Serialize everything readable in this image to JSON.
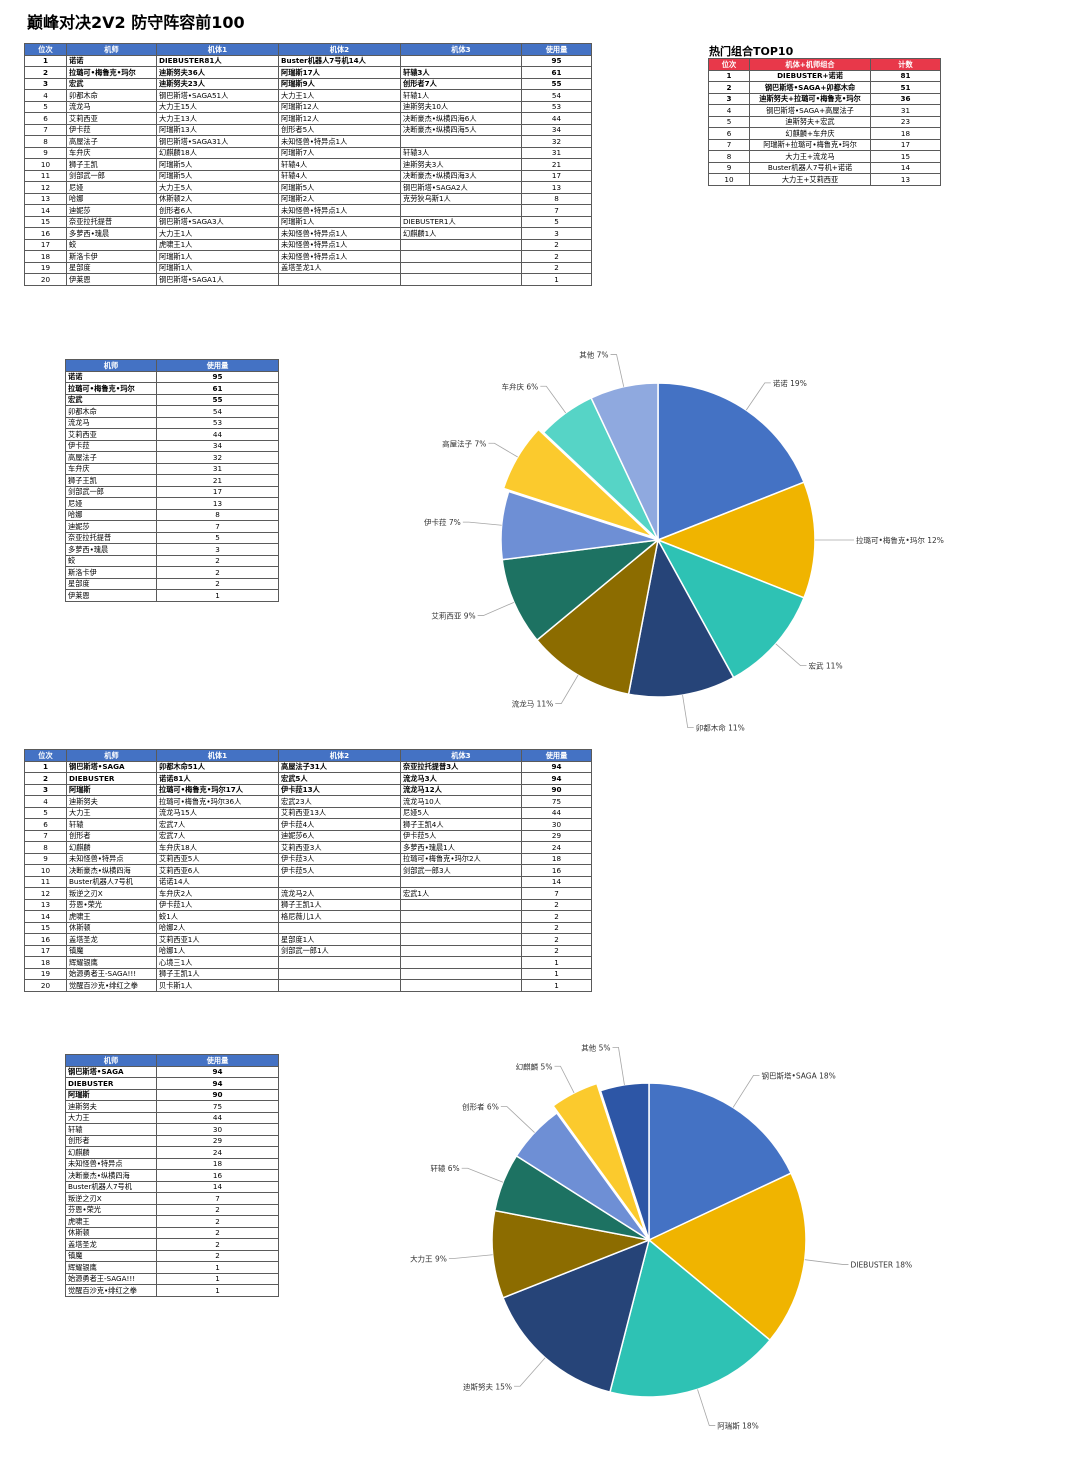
{
  "title": "巅峰对决2V2 防守阵容前100",
  "table_headers": {
    "rank": "位次",
    "pilot": "机师",
    "m1": "机体1",
    "m2": "机体2",
    "m3": "机体3",
    "usage": "使用量"
  },
  "pilot_table_headers": {
    "pilot": "机师",
    "usage": "使用量"
  },
  "top10": {
    "title": "热门组合TOP10",
    "headers": {
      "rank": "位次",
      "combo": "机体+机师组合",
      "count": "计数"
    },
    "rows": [
      {
        "rank": "1",
        "combo": "DIEBUSTER+诺诺",
        "count": "81",
        "bold": true
      },
      {
        "rank": "2",
        "combo": "钢巴斯塔•SAGA+卯都木命",
        "count": "51",
        "bold": true
      },
      {
        "rank": "3",
        "combo": "迪斯努夫+拉璐可•梅鲁克•玛尔",
        "count": "36",
        "bold": true
      },
      {
        "rank": "4",
        "combo": "钢巴斯塔•SAGA+高屋法子",
        "count": "31",
        "bold": false
      },
      {
        "rank": "5",
        "combo": "迪斯努夫+宏武",
        "count": "23",
        "bold": false
      },
      {
        "rank": "6",
        "combo": "幻麒麟+车弁庆",
        "count": "18",
        "bold": false
      },
      {
        "rank": "7",
        "combo": "阿瑞斯+拉璐可•梅鲁克•玛尔",
        "count": "17",
        "bold": false
      },
      {
        "rank": "8",
        "combo": "大力王+流龙马",
        "count": "15",
        "bold": false
      },
      {
        "rank": "9",
        "combo": "Buster机器人7号机+诺诺",
        "count": "14",
        "bold": false
      },
      {
        "rank": "10",
        "combo": "大力王+艾莉西亚",
        "count": "13",
        "bold": false
      }
    ]
  },
  "table1": [
    {
      "rank": "1",
      "pilot": "诺诺",
      "m1": "DIEBUSTER81人",
      "m2": "Buster机器人7号机14人",
      "m3": "",
      "usage": "95",
      "bold": true
    },
    {
      "rank": "2",
      "pilot": "拉璐可•梅鲁克•玛尔",
      "m1": "迪斯努夫36人",
      "m2": "阿瑞斯17人",
      "m3": "轩辕3人",
      "usage": "61",
      "bold": true
    },
    {
      "rank": "3",
      "pilot": "宏武",
      "m1": "迪斯努夫23人",
      "m2": "阿瑞斯9人",
      "m3": "创形者7人",
      "usage": "55",
      "bold": true
    },
    {
      "rank": "4",
      "pilot": "卯都木命",
      "m1": "钢巴斯塔•SAGA51人",
      "m2": "大力王1人",
      "m3": "轩辕1人",
      "usage": "54",
      "bold": false
    },
    {
      "rank": "5",
      "pilot": "流龙马",
      "m1": "大力王15人",
      "m2": "阿瑞斯12人",
      "m3": "迪斯努夫10人",
      "usage": "53",
      "bold": false
    },
    {
      "rank": "6",
      "pilot": "艾莉西亚",
      "m1": "大力王13人",
      "m2": "阿瑞斯12人",
      "m3": "决断豪杰•纵横四海6人",
      "usage": "44",
      "bold": false
    },
    {
      "rank": "7",
      "pilot": "伊卡菈",
      "m1": "阿瑞斯13人",
      "m2": "创形者5人",
      "m3": "决断豪杰•纵横四海5人",
      "usage": "34",
      "bold": false
    },
    {
      "rank": "8",
      "pilot": "高屋法子",
      "m1": "钢巴斯塔•SAGA31人",
      "m2": "未知怪兽•特异点1人",
      "m3": "",
      "usage": "32",
      "bold": false
    },
    {
      "rank": "9",
      "pilot": "车弁庆",
      "m1": "幻麒麟18人",
      "m2": "阿瑞斯7人",
      "m3": "轩辕3人",
      "usage": "31",
      "bold": false
    },
    {
      "rank": "10",
      "pilot": "狮子王凯",
      "m1": "阿瑞斯5人",
      "m2": "轩辕4人",
      "m3": "迪斯努夫3人",
      "usage": "21",
      "bold": false
    },
    {
      "rank": "11",
      "pilot": "剑部武一郎",
      "m1": "阿瑞斯5人",
      "m2": "轩辕4人",
      "m3": "决断豪杰•纵横四海3人",
      "usage": "17",
      "bold": false
    },
    {
      "rank": "12",
      "pilot": "尼娅",
      "m1": "大力王5人",
      "m2": "阿瑞斯5人",
      "m3": "钢巴斯塔•SAGA2人",
      "usage": "13",
      "bold": false
    },
    {
      "rank": "13",
      "pilot": "哈娜",
      "m1": "休斯顿2人",
      "m2": "阿瑞斯2人",
      "m3": "克劳狄乌斯1人",
      "usage": "8",
      "bold": false
    },
    {
      "rank": "14",
      "pilot": "迪妮莎",
      "m1": "创形者6人",
      "m2": "未知怪兽•特异点1人",
      "m3": "",
      "usage": "7",
      "bold": false
    },
    {
      "rank": "15",
      "pilot": "奈亚拉托提普",
      "m1": "钢巴斯塔•SAGA3人",
      "m2": "阿瑞斯1人",
      "m3": "DIEBUSTER1人",
      "usage": "5",
      "bold": false
    },
    {
      "rank": "16",
      "pilot": "多萝西•瑰晨",
      "m1": "大力王1人",
      "m2": "未知怪兽•特异点1人",
      "m3": "幻麒麟1人",
      "usage": "3",
      "bold": false
    },
    {
      "rank": "17",
      "pilot": "蛟",
      "m1": "虎啸王1人",
      "m2": "未知怪兽•特异点1人",
      "m3": "",
      "usage": "2",
      "bold": false
    },
    {
      "rank": "18",
      "pilot": "斯洛卡伊",
      "m1": "阿瑞斯1人",
      "m2": "未知怪兽•特异点1人",
      "m3": "",
      "usage": "2",
      "bold": false
    },
    {
      "rank": "19",
      "pilot": "星部度",
      "m1": "阿瑞斯1人",
      "m2": "盖塔圣龙1人",
      "m3": "",
      "usage": "2",
      "bold": false
    },
    {
      "rank": "20",
      "pilot": "伊莱恩",
      "m1": "钢巴斯塔•SAGA1人",
      "m2": "",
      "m3": "",
      "usage": "1",
      "bold": false
    }
  ],
  "pilot_table1": [
    {
      "name": "诺诺",
      "usage": "95",
      "bold": true
    },
    {
      "name": "拉璐可•梅鲁克•玛尔",
      "usage": "61",
      "bold": true
    },
    {
      "name": "宏武",
      "usage": "55",
      "bold": true
    },
    {
      "name": "卯都木命",
      "usage": "54",
      "bold": false
    },
    {
      "name": "流龙马",
      "usage": "53",
      "bold": false
    },
    {
      "name": "艾莉西亚",
      "usage": "44",
      "bold": false
    },
    {
      "name": "伊卡菈",
      "usage": "34",
      "bold": false
    },
    {
      "name": "高屋法子",
      "usage": "32",
      "bold": false
    },
    {
      "name": "车弁庆",
      "usage": "31",
      "bold": false
    },
    {
      "name": "狮子王凯",
      "usage": "21",
      "bold": false
    },
    {
      "name": "剑部武一郎",
      "usage": "17",
      "bold": false
    },
    {
      "name": "尼娅",
      "usage": "13",
      "bold": false
    },
    {
      "name": "哈娜",
      "usage": "8",
      "bold": false
    },
    {
      "name": "迪妮莎",
      "usage": "7",
      "bold": false
    },
    {
      "name": "奈亚拉托提普",
      "usage": "5",
      "bold": false
    },
    {
      "name": "多萝西•瑰晨",
      "usage": "3",
      "bold": false
    },
    {
      "name": "蛟",
      "usage": "2",
      "bold": false
    },
    {
      "name": "斯洛卡伊",
      "usage": "2",
      "bold": false
    },
    {
      "name": "星部度",
      "usage": "2",
      "bold": false
    },
    {
      "name": "伊莱恩",
      "usage": "1",
      "bold": false
    }
  ],
  "table2": [
    {
      "rank": "1",
      "pilot": "钢巴斯塔•SAGA",
      "m1": "卯都木命51人",
      "m2": "高屋法子31人",
      "m3": "奈亚拉托提普3人",
      "usage": "94",
      "bold": true
    },
    {
      "rank": "2",
      "pilot": "DIEBUSTER",
      "m1": "诺诺81人",
      "m2": "宏武5人",
      "m3": "流龙马3人",
      "usage": "94",
      "bold": true
    },
    {
      "rank": "3",
      "pilot": "阿瑞斯",
      "m1": "拉璐可•梅鲁克•玛尔17人",
      "m2": "伊卡菈13人",
      "m3": "流龙马12人",
      "usage": "90",
      "bold": true
    },
    {
      "rank": "4",
      "pilot": "迪斯努夫",
      "m1": "拉璐可•梅鲁克•玛尔36人",
      "m2": "宏武23人",
      "m3": "流龙马10人",
      "usage": "75",
      "bold": false
    },
    {
      "rank": "5",
      "pilot": "大力王",
      "m1": "流龙马15人",
      "m2": "艾莉西亚13人",
      "m3": "尼娅5人",
      "usage": "44",
      "bold": false
    },
    {
      "rank": "6",
      "pilot": "轩辕",
      "m1": "宏武7人",
      "m2": "伊卡菈4人",
      "m3": "狮子王凯4人",
      "usage": "30",
      "bold": false
    },
    {
      "rank": "7",
      "pilot": "创形者",
      "m1": "宏武7人",
      "m2": "迪妮莎6人",
      "m3": "伊卡菈5人",
      "usage": "29",
      "bold": false
    },
    {
      "rank": "8",
      "pilot": "幻麒麟",
      "m1": "车弁庆18人",
      "m2": "艾莉西亚3人",
      "m3": "多萝西•瑰晨1人",
      "usage": "24",
      "bold": false
    },
    {
      "rank": "9",
      "pilot": "未知怪兽•特异点",
      "m1": "艾莉西亚5人",
      "m2": "伊卡菈3人",
      "m3": "拉璐可•梅鲁克•玛尔2人",
      "usage": "18",
      "bold": false
    },
    {
      "rank": "10",
      "pilot": "决断豪杰•纵横四海",
      "m1": "艾莉西亚6人",
      "m2": "伊卡菈5人",
      "m3": "剑部武一郎3人",
      "usage": "16",
      "bold": false
    },
    {
      "rank": "11",
      "pilot": "Buster机器人7号机",
      "m1": "诺诺14人",
      "m2": "",
      "m3": "",
      "usage": "14",
      "bold": false
    },
    {
      "rank": "12",
      "pilot": "叛逆之刃X",
      "m1": "车弁庆2人",
      "m2": "流龙马2人",
      "m3": "宏武1人",
      "usage": "7",
      "bold": false
    },
    {
      "rank": "13",
      "pilot": "芬恩•荣光",
      "m1": "伊卡菈1人",
      "m2": "狮子王凯1人",
      "m3": "",
      "usage": "2",
      "bold": false
    },
    {
      "rank": "14",
      "pilot": "虎啸王",
      "m1": "蛟1人",
      "m2": "格尼薇儿1人",
      "m3": "",
      "usage": "2",
      "bold": false
    },
    {
      "rank": "15",
      "pilot": "休斯顿",
      "m1": "哈娜2人",
      "m2": "",
      "m3": "",
      "usage": "2",
      "bold": false
    },
    {
      "rank": "16",
      "pilot": "盖塔圣龙",
      "m1": "艾莉西亚1人",
      "m2": "星部度1人",
      "m3": "",
      "usage": "2",
      "bold": false
    },
    {
      "rank": "17",
      "pilot": "镇魔",
      "m1": "哈娜1人",
      "m2": "剑部武一郎1人",
      "m3": "",
      "usage": "2",
      "bold": false
    },
    {
      "rank": "18",
      "pilot": "辉耀银鹰",
      "m1": "心境三1人",
      "m2": "",
      "m3": "",
      "usage": "1",
      "bold": false
    },
    {
      "rank": "19",
      "pilot": "始源勇者王-SAGA!!!",
      "m1": "狮子王凯1人",
      "m2": "",
      "m3": "",
      "usage": "1",
      "bold": false
    },
    {
      "rank": "20",
      "pilot": "觉醒百沙克•绯红之拳",
      "m1": "贝卡斯1人",
      "m2": "",
      "m3": "",
      "usage": "1",
      "bold": false
    }
  ],
  "pilot_table2": [
    {
      "name": "钢巴斯塔•SAGA",
      "usage": "94",
      "bold": true
    },
    {
      "name": "DIEBUSTER",
      "usage": "94",
      "bold": true
    },
    {
      "name": "阿瑞斯",
      "usage": "90",
      "bold": true
    },
    {
      "name": "迪斯努夫",
      "usage": "75",
      "bold": false
    },
    {
      "name": "大力王",
      "usage": "44",
      "bold": false
    },
    {
      "name": "轩辕",
      "usage": "30",
      "bold": false
    },
    {
      "name": "创形者",
      "usage": "29",
      "bold": false
    },
    {
      "name": "幻麒麟",
      "usage": "24",
      "bold": false
    },
    {
      "name": "未知怪兽•特异点",
      "usage": "18",
      "bold": false
    },
    {
      "name": "决断豪杰•纵横四海",
      "usage": "16",
      "bold": false
    },
    {
      "name": "Buster机器人7号机",
      "usage": "14",
      "bold": false
    },
    {
      "name": "叛逆之刃X",
      "usage": "7",
      "bold": false
    },
    {
      "name": "芬恩•荣光",
      "usage": "2",
      "bold": false
    },
    {
      "name": "虎啸王",
      "usage": "2",
      "bold": false
    },
    {
      "name": "休斯顿",
      "usage": "2",
      "bold": false
    },
    {
      "name": "盖塔圣龙",
      "usage": "2",
      "bold": false
    },
    {
      "name": "镇魔",
      "usage": "2",
      "bold": false
    },
    {
      "name": "辉耀银鹰",
      "usage": "1",
      "bold": false
    },
    {
      "name": "始源勇者王-SAGA!!!",
      "usage": "1",
      "bold": false
    },
    {
      "name": "觉醒百沙克•绯红之拳",
      "usage": "1",
      "bold": false
    }
  ],
  "chart_data": [
    {
      "type": "pie",
      "title": "",
      "slices": [
        {
          "label": "诺诺",
          "pct": 19,
          "color": "#4472c4"
        },
        {
          "label": "拉璐可•梅鲁克•玛尔",
          "pct": 12,
          "color": "#f0b400"
        },
        {
          "label": "宏武",
          "pct": 11,
          "color": "#2ec2b4"
        },
        {
          "label": "卯都木命",
          "pct": 11,
          "color": "#264478"
        },
        {
          "label": "流龙马",
          "pct": 11,
          "color": "#8c6c00"
        },
        {
          "label": "艾莉西亚",
          "pct": 9,
          "color": "#1d7262"
        },
        {
          "label": "伊卡菈",
          "pct": 7,
          "color": "#6e8fd5"
        },
        {
          "label": "高屋法子",
          "pct": 7,
          "color": "#fbca2d"
        },
        {
          "label": "车弁庆",
          "pct": 6,
          "color": "#56d4c6"
        },
        {
          "label": "其他",
          "pct": 7,
          "color": "#8fa9df"
        }
      ]
    },
    {
      "type": "pie",
      "title": "",
      "slices": [
        {
          "label": "钢巴斯塔•SAGA",
          "pct": 18,
          "color": "#4472c4"
        },
        {
          "label": "DIEBUSTER",
          "pct": 18,
          "color": "#f0b400"
        },
        {
          "label": "阿瑞斯",
          "pct": 18,
          "color": "#2ec2b4"
        },
        {
          "label": "迪斯努夫",
          "pct": 15,
          "color": "#264478"
        },
        {
          "label": "大力王",
          "pct": 9,
          "color": "#8c6c00"
        },
        {
          "label": "轩辕",
          "pct": 6,
          "color": "#1d7262"
        },
        {
          "label": "创形者",
          "pct": 6,
          "color": "#6e8fd5"
        },
        {
          "label": "幻麒麟",
          "pct": 5,
          "color": "#fbca2d"
        },
        {
          "label": "其他",
          "pct": 5,
          "color": "#2d56a6"
        }
      ]
    }
  ]
}
